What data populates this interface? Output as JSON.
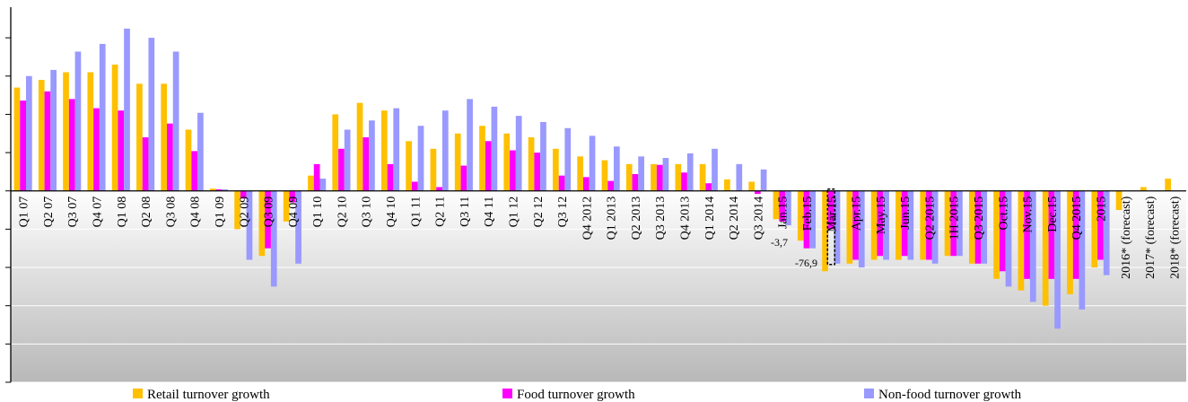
{
  "chart_data": {
    "type": "bar",
    "categories": [
      "Q1 07",
      "Q2 07",
      "Q3 07",
      "Q4 07",
      "Q1 08",
      "Q2 08",
      "Q3 08",
      "Q4 08",
      "Q1 09",
      "Q2 09",
      "Q3 09",
      "Q4 09",
      "Q1 10",
      "Q2 10",
      "Q3 10",
      "Q4 10",
      "Q1 11",
      "Q2 11",
      "Q3 11",
      "Q4 11",
      "Q1 12",
      "Q2 12",
      "Q3 12",
      "Q4 2012",
      "Q1 2013",
      "Q2 2013",
      "Q3 2013",
      "Q4 2013",
      "Q1 2014",
      "Q2 2014",
      "Q3 2014",
      "Jan.15",
      "Feb.15",
      "Mar.15",
      "Apr.15",
      "May.15",
      "Jun.15",
      "Q2 2015",
      "1H 2015",
      "Q3 2015",
      "Oct.15",
      "Nov.15",
      "Dec.15",
      "Q4 2015",
      "2015",
      "2016* (forecast)",
      "2017* (forecast)",
      "2018* (forecast)"
    ],
    "series": [
      {
        "name": "Retail turnover growth",
        "color": "#FFC000",
        "values": [
          13.5,
          14.5,
          15.5,
          15.5,
          16.5,
          14,
          14,
          8,
          0.3,
          -5,
          -8.5,
          -4,
          2,
          10,
          11.5,
          10.5,
          6.5,
          5.5,
          7.5,
          8.5,
          7.5,
          7,
          5.5,
          4.5,
          4,
          3.5,
          3.5,
          3.5,
          3.5,
          1.5,
          1.2,
          -3.7,
          -6.5,
          -10.5,
          -9.5,
          -9,
          -9,
          -9,
          -8.5,
          -9.5,
          -11.5,
          -13,
          -15,
          -13.5,
          -10,
          -2.5,
          0.5,
          1.6
        ]
      },
      {
        "name": "Food turnover growth",
        "color": "#FF00FF",
        "values": [
          11.8,
          13,
          12,
          10.8,
          10.5,
          7,
          8.8,
          5.2,
          0.2,
          -1,
          -7.5,
          -1.5,
          3.5,
          5.5,
          7,
          3.5,
          1.2,
          0.5,
          3.3,
          6.5,
          5.3,
          5,
          2,
          1.8,
          1.3,
          2.2,
          3.4,
          2.4,
          1,
          0,
          -0.4,
          -4,
          -7.5,
          -5,
          -9,
          -8.5,
          -8.5,
          -9,
          -8.5,
          -9.5,
          -10.5,
          -11.5,
          -11.5,
          -11.5,
          -9,
          0,
          0,
          0
        ]
      },
      {
        "name": "Non-food turnover growth",
        "color": "#9999FF",
        "values": [
          15,
          15.8,
          18.2,
          19.2,
          21.2,
          20,
          18.2,
          10.2,
          0.2,
          -9,
          -12.5,
          -9.5,
          1.6,
          8,
          9.2,
          10.8,
          8.5,
          10.5,
          12,
          11,
          9.8,
          9,
          8.2,
          7.2,
          5.8,
          4.5,
          4.3,
          4.9,
          5.5,
          3.5,
          2.8,
          -4.5,
          -7.5,
          -9.5,
          -10,
          -9,
          -9,
          -9.5,
          -8.5,
          -9.5,
          -12.5,
          -14.5,
          -18,
          -15.5,
          -11,
          0,
          0,
          0
        ]
      }
    ],
    "data_labels": [
      "-3,7",
      "-76,9"
    ],
    "ylim": [
      -25,
      24
    ],
    "grid": true,
    "legend_position": "bottom"
  }
}
